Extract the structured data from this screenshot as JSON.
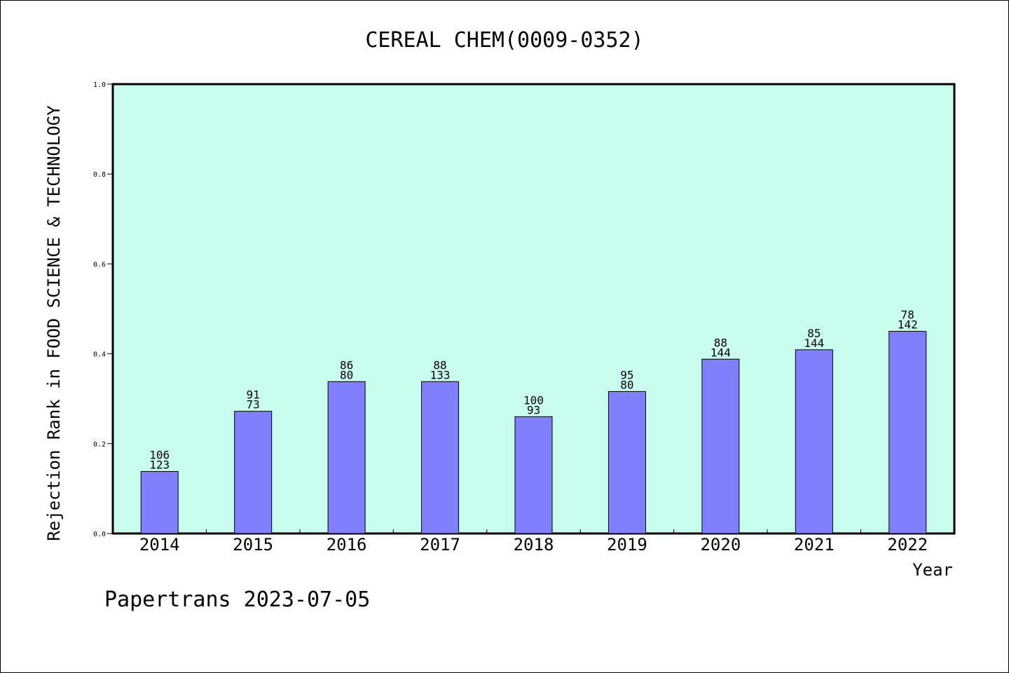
{
  "chart_data": {
    "type": "bar",
    "title": "CEREAL CHEM(0009-0352)",
    "ylabel": "Rejection Rank in FOOD SCIENCE & TECHNOLOGY",
    "xlabel": "Year",
    "ylim": [
      0,
      1.0
    ],
    "yticks": [
      "0.0",
      "0.2",
      "0.4",
      "0.6",
      "0.8",
      "1.0"
    ],
    "categories": [
      "2014",
      "2015",
      "2016",
      "2017",
      "2018",
      "2019",
      "2020",
      "2021",
      "2022"
    ],
    "values": [
      0.138,
      0.272,
      0.338,
      0.338,
      0.26,
      0.316,
      0.388,
      0.409,
      0.45
    ],
    "labels_top": [
      "106",
      "91",
      "86",
      "88",
      "100",
      "95",
      "88",
      "85",
      "78"
    ],
    "labels_bottom": [
      "123",
      "73",
      "80",
      "133",
      "93",
      "80",
      "144",
      "144",
      "142"
    ],
    "colors": {
      "plot_bg": "#c8fcee",
      "bar": "#8080ff"
    },
    "grid": false
  },
  "footer": "Papertrans 2023-07-05"
}
